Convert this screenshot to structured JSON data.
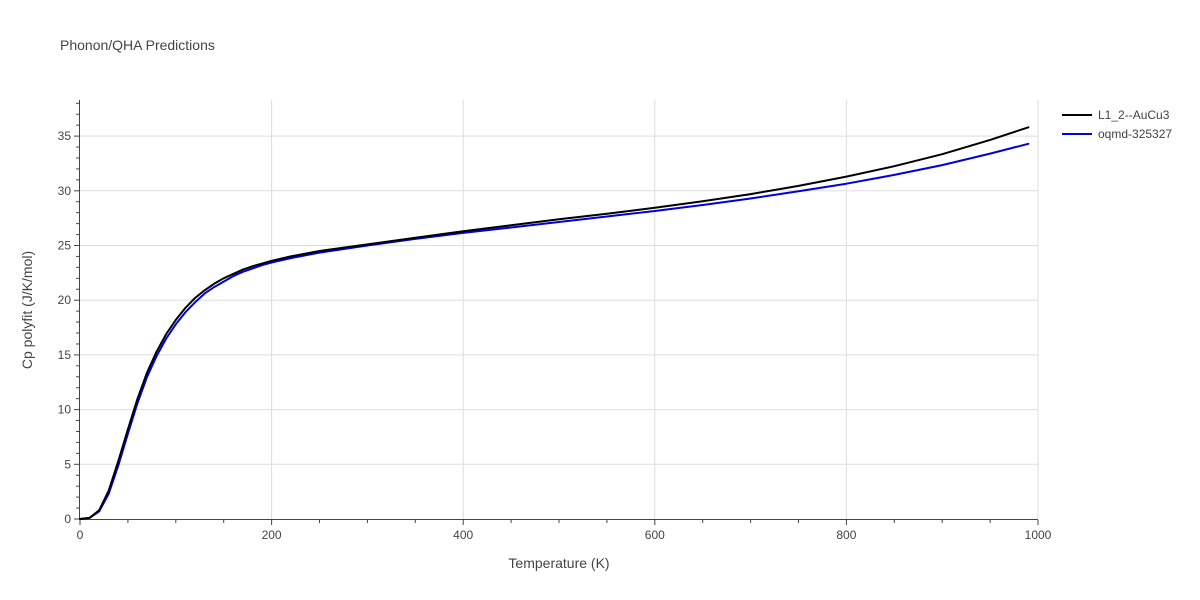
{
  "chart_data": {
    "type": "line",
    "title": "Phonon/QHA Predictions",
    "xlabel": "Temperature (K)",
    "ylabel": "Cp polyfit (J/K/mol)",
    "xlim": [
      0,
      1000
    ],
    "ylim": [
      0,
      38.3
    ],
    "xticks": [
      0,
      200,
      400,
      600,
      800,
      1000
    ],
    "yticks": [
      0,
      5,
      10,
      15,
      20,
      25,
      30,
      35
    ],
    "grid": true,
    "legend_position": "top-right",
    "series": [
      {
        "name": "L1_2--AuCu3",
        "color": "#000000",
        "x": [
          0,
          10,
          20,
          30,
          40,
          50,
          60,
          70,
          80,
          90,
          100,
          110,
          120,
          130,
          140,
          150,
          160,
          170,
          180,
          190,
          200,
          220,
          250,
          300,
          350,
          400,
          450,
          500,
          550,
          600,
          650,
          700,
          750,
          800,
          850,
          900,
          950,
          990
        ],
        "y": [
          0,
          0.1,
          0.8,
          2.6,
          5.3,
          8.2,
          11.0,
          13.4,
          15.3,
          16.9,
          18.2,
          19.3,
          20.2,
          20.9,
          21.5,
          22.0,
          22.4,
          22.8,
          23.1,
          23.35,
          23.6,
          24.0,
          24.5,
          25.1,
          25.7,
          26.3,
          26.85,
          27.4,
          27.9,
          28.45,
          29.05,
          29.7,
          30.45,
          31.3,
          32.25,
          33.35,
          34.65,
          35.8
        ]
      },
      {
        "name": "oqmd-325327",
        "color": "#0000dd",
        "x": [
          0,
          10,
          20,
          30,
          40,
          50,
          60,
          70,
          80,
          90,
          100,
          110,
          120,
          130,
          140,
          150,
          160,
          170,
          180,
          190,
          200,
          220,
          250,
          300,
          350,
          400,
          450,
          500,
          550,
          600,
          650,
          700,
          750,
          800,
          850,
          900,
          950,
          990
        ],
        "y": [
          0,
          0.1,
          0.7,
          2.3,
          4.9,
          7.8,
          10.6,
          13.0,
          14.9,
          16.5,
          17.8,
          18.9,
          19.8,
          20.6,
          21.2,
          21.7,
          22.2,
          22.6,
          22.9,
          23.2,
          23.45,
          23.85,
          24.35,
          25.0,
          25.6,
          26.15,
          26.65,
          27.15,
          27.65,
          28.15,
          28.7,
          29.3,
          29.95,
          30.65,
          31.45,
          32.35,
          33.4,
          34.3
        ]
      }
    ]
  }
}
